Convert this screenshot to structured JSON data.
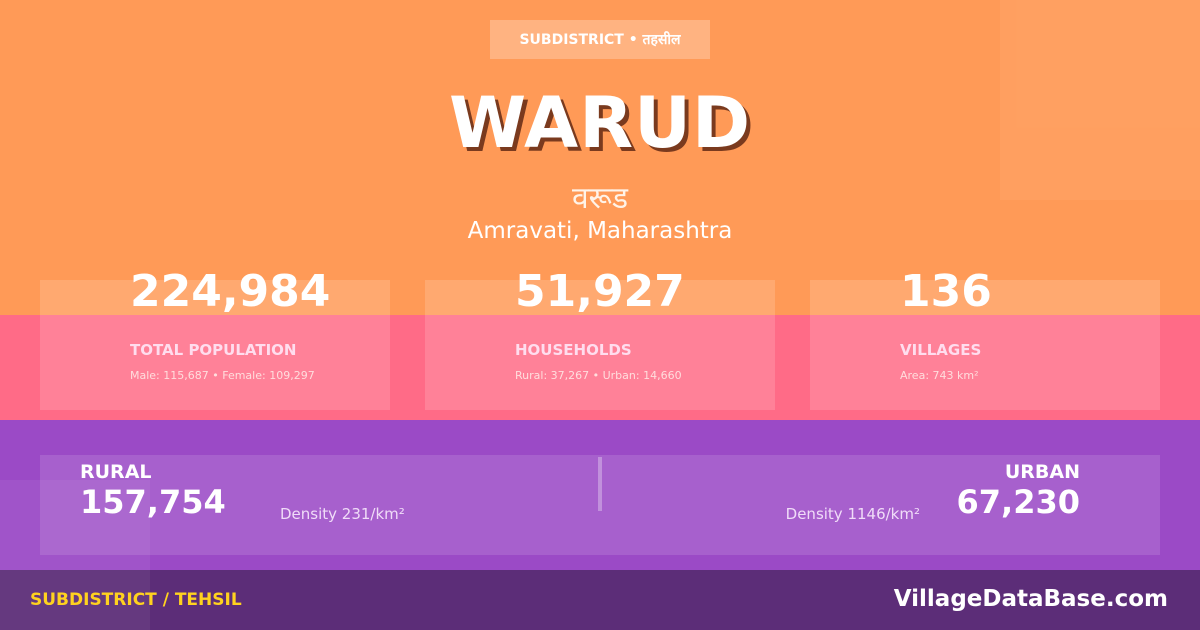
{
  "colors": {
    "top": "#ff9a57",
    "middle": "#ff6b87",
    "bottom": "#9b4ac6",
    "footer": "#5c2d78",
    "accent": "#ffd21f"
  },
  "badge": "SUBDISTRICT • तहसील",
  "title": "WARUD",
  "native_name": "वरूड",
  "location": "Amravati, Maharashtra",
  "stats": [
    {
      "value": "224,984",
      "label": "TOTAL POPULATION",
      "sub": "Male: 115,687 • Female: 109,297"
    },
    {
      "value": "51,927",
      "label": "HOUSEHOLDS",
      "sub": "Rural: 37,267 • Urban: 14,660"
    },
    {
      "value": "136",
      "label": "VILLAGES",
      "sub": "Area: 743 km²"
    }
  ],
  "rural": {
    "label": "RURAL",
    "value": "157,754",
    "density": "Density 231/km²"
  },
  "urban": {
    "label": "URBAN",
    "value": "67,230",
    "density": "Density 1146/km²"
  },
  "footer": {
    "left": "SUBDISTRICT / TEHSIL",
    "right": "VillageDataBase.com"
  }
}
